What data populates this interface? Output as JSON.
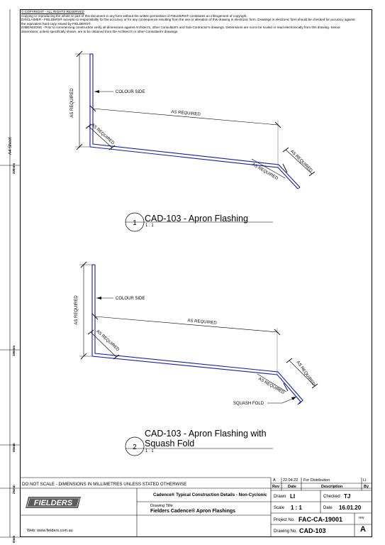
{
  "notes": {
    "line1": "© COPYRIGHT - ALL RIGHTS RESERVED",
    "line2": "Copying or reproducing the whole or part of this document in any form without the written permission of FIELDERS® constitutes an infringement of copyright.",
    "line3": "DISCLAIMER - FIELDERS® accepts no responsibility for the accuracy or for any consequence resulting from the use or alteration of this drawing in electronic form.  Drawings in electronic form should be checked for accuracy against",
    "line4": "the equivalent hard copy issued by FIELDERS®.",
    "line5": "DIMENSIONS - Prior to commencing construction verify all dimensions against Architect's, other Consultant's and Sub-Contractor's drawings. Dimensions are not to be scaled or read electronically from this drawing. Setout",
    "line6": "dimensions, unless specifically shown, are to be obtained from the Architect's or other Consultant's drawings."
  },
  "ruler": {
    "sheet_label": "A4 Sheet",
    "marks": [
      "200mm",
      "150mm",
      "50mm",
      "25mm",
      "0mm"
    ]
  },
  "detail1": {
    "number": "1",
    "title": "CAD-103 - Apron Flashing",
    "scale": "1 : 1",
    "labels": {
      "colour_side": "COLOUR SIDE",
      "height": "AS REQUIRED",
      "length": "AS REQUIRED",
      "corner": "AS REQUIRED",
      "slope": "AS REQUIRED",
      "tail": "AS REQUIRED"
    }
  },
  "detail2": {
    "number": "2",
    "title_line1": "CAD-103 - Apron Flashing with",
    "title_line2": "Squash Fold",
    "scale": "1 : 1",
    "labels": {
      "colour_side": "COLOUR SIDE",
      "height": "AS REQUIRED",
      "length": "AS REQUIRED",
      "corner": "AS REQUIRED",
      "slope": "AS REQUIRED",
      "tail": "AS REQUIRED",
      "squash_fold": "SQUASH FOLD"
    }
  },
  "title_block": {
    "notice": "DO NOT SCALE - DIMENSIONS IN MILLIMETRES UNLESS STATED OTHERWISE",
    "brand": "FIELDERS",
    "website": "Web: www.fielders.com.au",
    "series": "Cadence® Typical Construction Details - Non-Cyclonic",
    "drawing_title_label": "Drawing Title",
    "drawing_title": "Fielders Cadence® Apron Flashings",
    "revision": {
      "rev": "A",
      "date": "22.04.22",
      "description": "For Distribution",
      "by": "LI",
      "headers": {
        "rev": "Rev",
        "date": "Date",
        "description": "Description",
        "by": "By"
      }
    },
    "drawn_label": "Drawn",
    "drawn": "LI",
    "checked_label": "Checked",
    "checked": "TJ",
    "scale_label": "Scale",
    "scale": "1 : 1",
    "date_label": "Date",
    "date": "16.01.20",
    "project_label": "Project No.",
    "project": "FAC-CA-19001",
    "drawing_no_label": "Drawing No.",
    "drawing_no": "CAD-103",
    "rev_label": "rev",
    "rev": "A"
  },
  "colors": {
    "line": "#000000",
    "flashing": "#1a1aa8"
  }
}
